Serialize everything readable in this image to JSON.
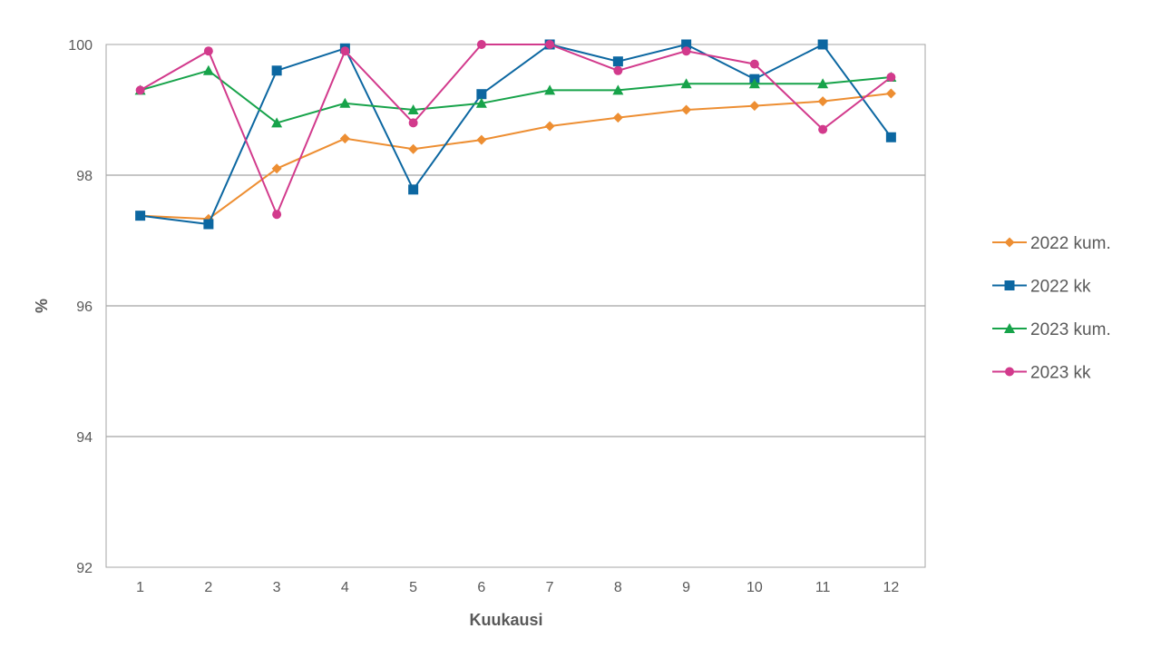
{
  "chart_data": {
    "type": "line",
    "title": "",
    "xlabel": "Kuukausi",
    "ylabel": "%",
    "ylim": [
      92,
      100
    ],
    "yticks": [
      92,
      94,
      96,
      98,
      100
    ],
    "categories": [
      "1",
      "2",
      "3",
      "4",
      "5",
      "6",
      "7",
      "8",
      "9",
      "10",
      "11",
      "12"
    ],
    "grid": true,
    "legend_position": "right",
    "series": [
      {
        "name": "2022 kum.",
        "color": "#ED8E32",
        "marker": "diamond",
        "values": [
          97.38,
          97.33,
          98.1,
          98.56,
          98.4,
          98.54,
          98.75,
          98.88,
          99.0,
          99.06,
          99.13,
          99.25
        ]
      },
      {
        "name": "2022 kk",
        "color": "#0C67A1",
        "marker": "square",
        "values": [
          97.38,
          97.25,
          99.6,
          99.94,
          97.78,
          99.24,
          100,
          99.74,
          100,
          99.47,
          100,
          98.58
        ]
      },
      {
        "name": "2023 kum.",
        "color": "#17A34A",
        "marker": "triangle",
        "values": [
          99.3,
          99.6,
          98.8,
          99.1,
          99.0,
          99.1,
          99.3,
          99.3,
          99.4,
          99.4,
          99.4,
          99.5
        ]
      },
      {
        "name": "2023 kk",
        "color": "#D23A8C",
        "marker": "circle",
        "values": [
          99.3,
          99.9,
          97.4,
          99.9,
          98.8,
          100,
          100,
          99.6,
          99.9,
          99.7,
          98.7,
          99.5
        ]
      }
    ]
  }
}
